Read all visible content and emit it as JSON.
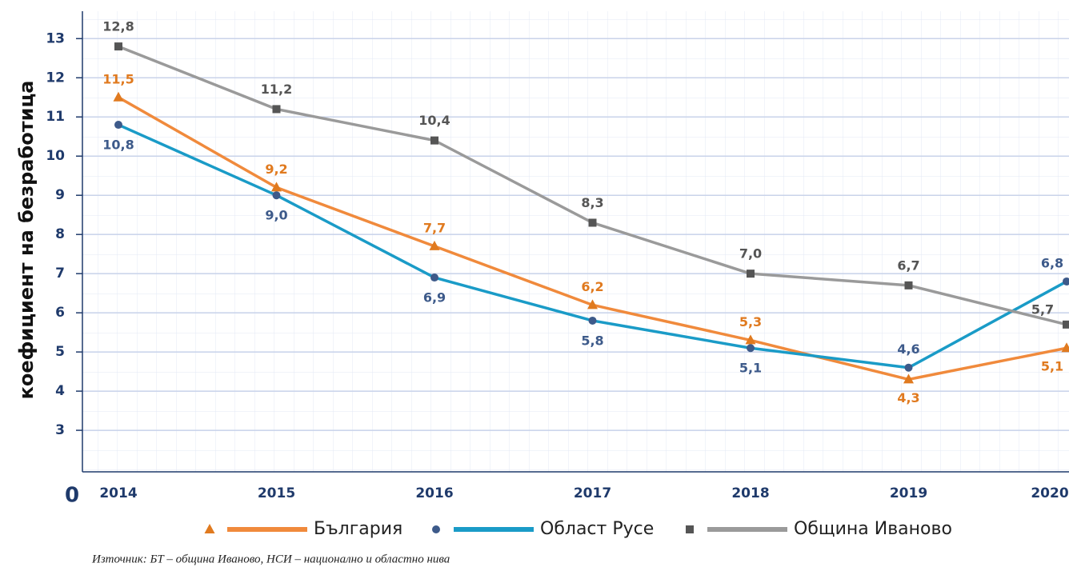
{
  "chart_data": {
    "type": "line",
    "y_axis_label": "коефициент на безработица",
    "y_origin_label": "0",
    "source": "Източник: БТ – община Иваново, НСИ – национално и областно нива",
    "categories": [
      "2014",
      "2015",
      "2016",
      "2017",
      "2018",
      "2019",
      "2020"
    ],
    "series": [
      {
        "name": "България",
        "color": "#f08a3c",
        "marker_color": "#e07a1f",
        "marker": "triangle",
        "values": [
          11.5,
          9.2,
          7.7,
          6.2,
          5.3,
          4.3,
          5.1
        ],
        "value_labels": [
          "11,5",
          "9,2",
          "7,7",
          "6,2",
          "5,3",
          "4,3",
          "5,1"
        ]
      },
      {
        "name": "Област Русе",
        "color": "#1a9bc7",
        "marker_color": "#3d5a8a",
        "marker": "circle",
        "values": [
          10.8,
          9.0,
          6.9,
          5.8,
          5.1,
          4.6,
          6.8
        ],
        "value_labels": [
          "10,8",
          "9,0",
          "6,9",
          "5,8",
          "5,1",
          "4,6",
          "6,8"
        ]
      },
      {
        "name": "Община Иваново",
        "color": "#9a9a9a",
        "marker_color": "#555555",
        "marker": "square",
        "values": [
          12.8,
          11.2,
          10.4,
          8.3,
          7.0,
          6.7,
          5.7
        ],
        "value_labels": [
          "12,8",
          "11,2",
          "10,4",
          "8,3",
          "7,0",
          "6,7",
          "5,7"
        ]
      }
    ],
    "ylim": [
      1.94,
      13.7
    ],
    "yticks": [
      3,
      4,
      5,
      6,
      7,
      8,
      9,
      10,
      11,
      12,
      13
    ],
    "grid": true
  }
}
